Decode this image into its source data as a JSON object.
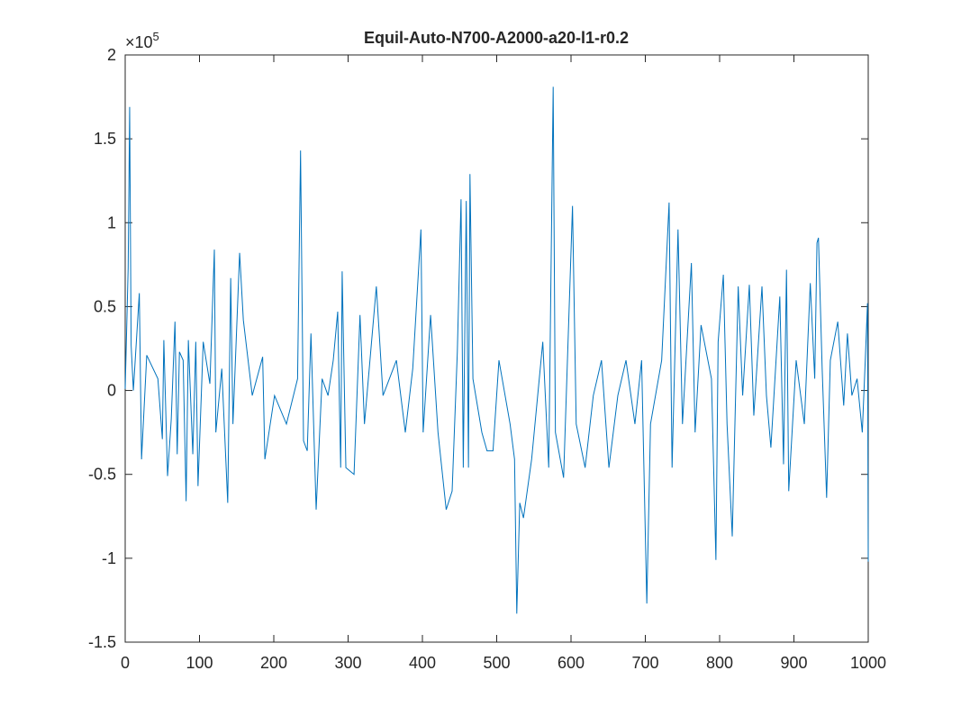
{
  "chart_data": {
    "type": "line",
    "title": "Equil-Auto-N700-A2000-a20-l1-r0.2",
    "y_scale_label": {
      "base": "×10",
      "exponent": "5"
    },
    "x": [
      0,
      4,
      6,
      8,
      11,
      19,
      22,
      29,
      44,
      50,
      52,
      57,
      62,
      67,
      70,
      73,
      78,
      82,
      85,
      91,
      95,
      98,
      105,
      114,
      120,
      122,
      130,
      138,
      142,
      145,
      154,
      159,
      171,
      185,
      188,
      201,
      217,
      232,
      236,
      240,
      245,
      250,
      257,
      265,
      273,
      280,
      286,
      290,
      292,
      297,
      308,
      316,
      322,
      338,
      347,
      365,
      377,
      387,
      398,
      401,
      411,
      421,
      432,
      440,
      447,
      452,
      455,
      459,
      462,
      464,
      468,
      480,
      487,
      495,
      503,
      518,
      524,
      527,
      531,
      536,
      547,
      562,
      570,
      576,
      579,
      590,
      602,
      607,
      619,
      630,
      641,
      651,
      663,
      674,
      686,
      695,
      702,
      707,
      722,
      732,
      736,
      744,
      750,
      762,
      767,
      775,
      789,
      795,
      798,
      805,
      810,
      817,
      825,
      831,
      840,
      846,
      857,
      863,
      869,
      881,
      886,
      890,
      893,
      903,
      914,
      922,
      928,
      931,
      933,
      938,
      944,
      949,
      959,
      967,
      972,
      978,
      985,
      992,
      996,
      999,
      1000
    ],
    "series": [
      {
        "color": "#0072bd",
        "values": [
          0.01,
          0.73,
          1.69,
          0.27,
          0,
          0.58,
          -0.41,
          0.21,
          0.07,
          -0.29,
          0.3,
          -0.51,
          -0.17,
          0.41,
          -0.38,
          0.23,
          0.18,
          -0.66,
          0.3,
          -0.38,
          0.29,
          -0.57,
          0.29,
          0.04,
          0.84,
          -0.25,
          0.13,
          -0.67,
          0.67,
          -0.2,
          0.82,
          0.42,
          -0.03,
          0.2,
          -0.41,
          -0.03,
          -0.2,
          0.07,
          1.43,
          -0.3,
          -0.36,
          0.34,
          -0.71,
          0.07,
          -0.03,
          0.18,
          0.47,
          -0.46,
          0.71,
          -0.46,
          -0.5,
          0.45,
          -0.2,
          0.62,
          -0.03,
          0.18,
          -0.25,
          0.13,
          0.96,
          -0.25,
          0.45,
          -0.25,
          -0.71,
          -0.6,
          0.23,
          1.14,
          -0.46,
          1.13,
          -0.46,
          1.29,
          0.07,
          -0.25,
          -0.36,
          -0.36,
          0.18,
          -0.2,
          -0.41,
          -1.33,
          -0.67,
          -0.76,
          -0.41,
          0.29,
          -0.46,
          1.81,
          -0.25,
          -0.52,
          1.1,
          -0.2,
          -0.46,
          -0.03,
          0.18,
          -0.46,
          -0.03,
          0.18,
          -0.2,
          0.18,
          -1.27,
          -0.2,
          0.18,
          1.12,
          -0.46,
          0.96,
          -0.2,
          0.76,
          -0.25,
          0.39,
          0.07,
          -1.01,
          0.29,
          0.69,
          -0.2,
          -0.87,
          0.62,
          -0.03,
          0.63,
          -0.15,
          0.62,
          -0.03,
          -0.34,
          0.56,
          -0.44,
          0.72,
          -0.6,
          0.18,
          -0.2,
          0.64,
          0.07,
          0.88,
          0.91,
          0.13,
          -0.64,
          0.18,
          0.41,
          -0.09,
          0.34,
          -0.03,
          0.07,
          -0.25,
          0.18,
          0.52,
          -1.02
        ]
      }
    ],
    "xlim": [
      0,
      1000
    ],
    "xticks": [
      0,
      100,
      200,
      300,
      400,
      500,
      600,
      700,
      800,
      900,
      1000
    ],
    "ylim": [
      -1.5,
      2
    ],
    "yticks": [
      -1.5,
      -1,
      -0.5,
      0,
      0.5,
      1,
      1.5,
      2
    ]
  }
}
